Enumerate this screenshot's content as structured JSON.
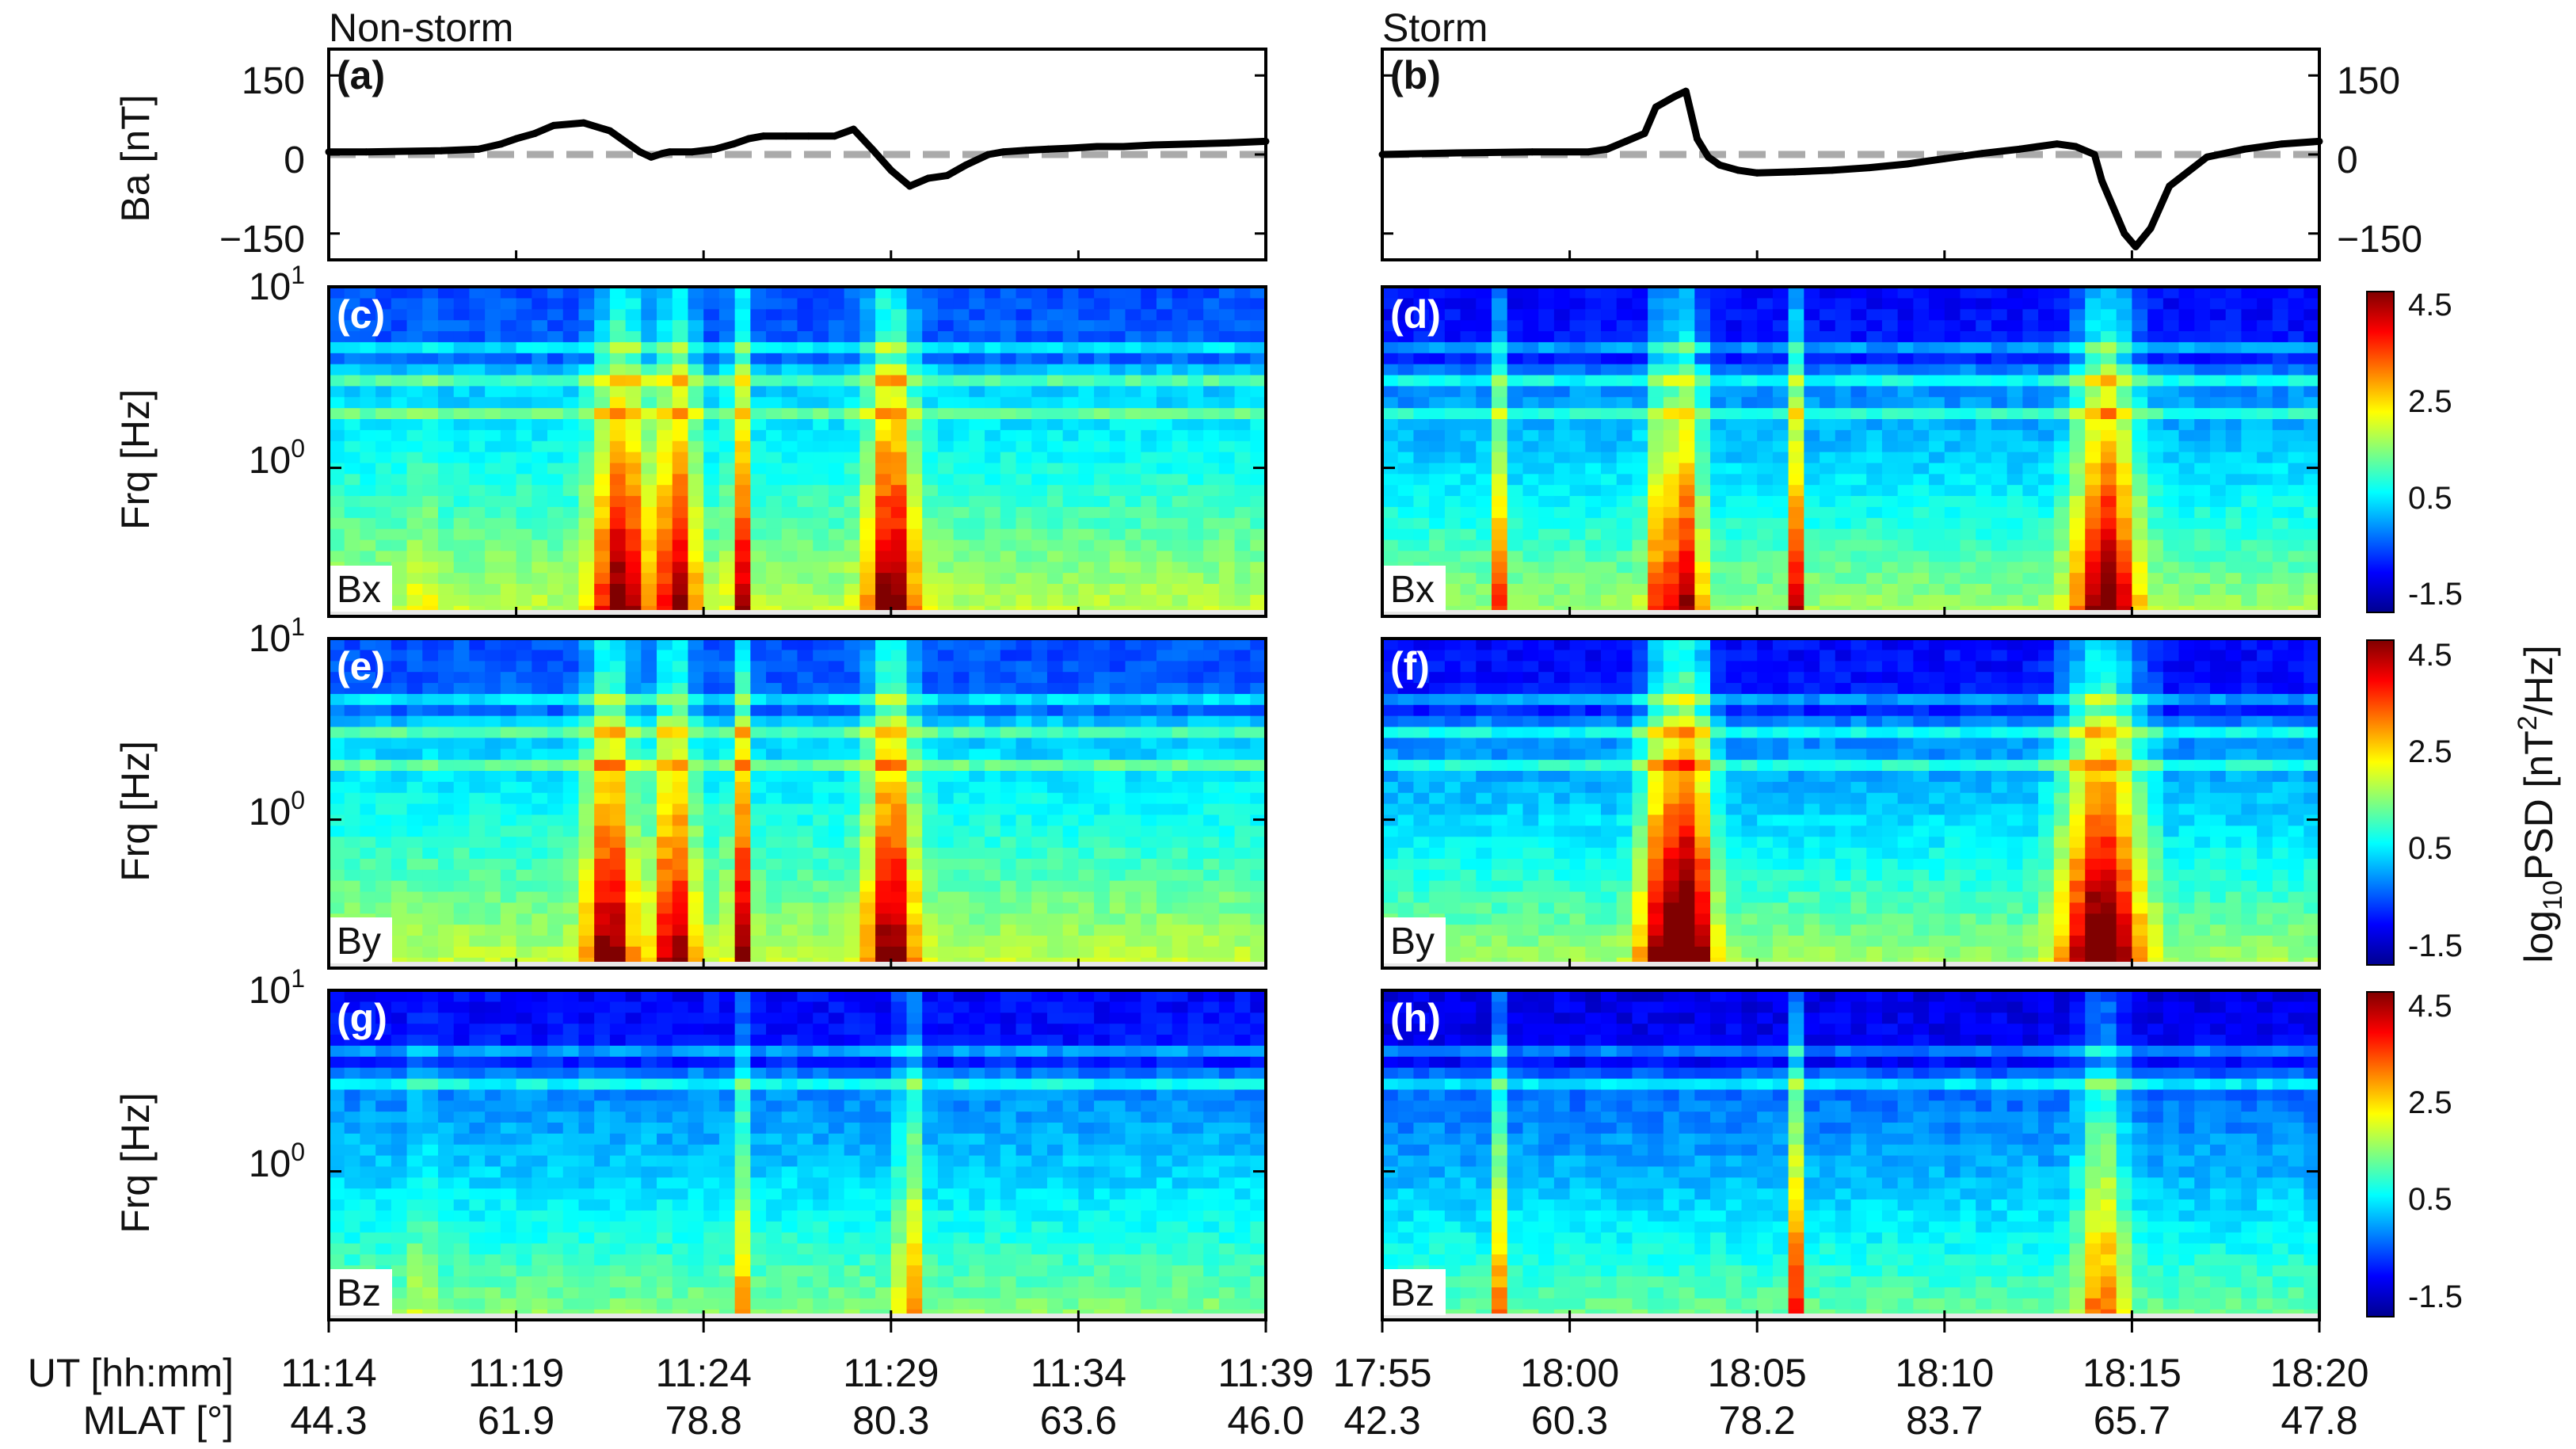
{
  "column_titles": {
    "left": "Non-storm",
    "right": "Storm"
  },
  "panel_labels": [
    "(a)",
    "(b)",
    "(c)",
    "(d)",
    "(e)",
    "(f)",
    "(g)",
    "(h)"
  ],
  "component_labels": [
    "Bx",
    "By",
    "Bz"
  ],
  "y_axis_titles": {
    "ba": "Ba [nT]",
    "frq": "Frq [Hz]"
  },
  "ba_ticks": [
    "150",
    "0",
    "−150"
  ],
  "frq_ticks": {
    "top_base": "10",
    "top_exp": "1",
    "mid_base": "10",
    "mid_exp": "0"
  },
  "colorbar": {
    "title_prefix": "log",
    "title_sub": "10",
    "title_mid": "PSD [nT",
    "title_sup": "2",
    "title_suffix": "/Hz]",
    "ticks": [
      "4.5",
      "2.5",
      "0.5",
      "-1.5"
    ],
    "colormap": "jet",
    "range": [
      -2.0,
      5.0
    ]
  },
  "x_axis": {
    "ut_label": "UT [hh:mm]",
    "mlat_label": "MLAT [°]",
    "left_ut": [
      "11:14",
      "11:19",
      "11:24",
      "11:29",
      "11:34",
      "11:39"
    ],
    "left_mlat": [
      "44.3",
      "61.9",
      "78.8",
      "80.3",
      "63.6",
      "46.0"
    ],
    "right_ut": [
      "17:55",
      "18:00",
      "18:05",
      "18:10",
      "18:15",
      "18:20"
    ],
    "right_mlat": [
      "42.3",
      "60.3",
      "78.2",
      "83.7",
      "65.7",
      "47.8"
    ]
  },
  "chart_data": [
    {
      "type": "line",
      "title": "Non-storm Ba",
      "panel": "(a)",
      "xlabel": "UT [hh:mm]",
      "ylabel": "Ba [nT]",
      "xlim": [
        0,
        25
      ],
      "ylim": [
        -200,
        200
      ],
      "reference_line": 0,
      "x": [
        0,
        1,
        2,
        3,
        4,
        4.6,
        5,
        5.5,
        6,
        6.8,
        7.5,
        7.8,
        8.3,
        8.6,
        8.9,
        9.1,
        9.7,
        10.3,
        10.8,
        11.2,
        11.6,
        12.2,
        12.8,
        13.5,
        14,
        14.5,
        15,
        15.5,
        16,
        16.5,
        17,
        17.6,
        18,
        18.6,
        19.2,
        19.8,
        20.5,
        21.2,
        22,
        23,
        24,
        25
      ],
      "values": [
        5,
        5,
        6,
        7,
        10,
        20,
        30,
        40,
        55,
        60,
        45,
        30,
        5,
        -5,
        2,
        5,
        5,
        10,
        20,
        30,
        35,
        35,
        35,
        35,
        48,
        10,
        -30,
        -60,
        -45,
        -40,
        -20,
        0,
        5,
        8,
        10,
        12,
        15,
        15,
        18,
        20,
        22,
        25
      ]
    },
    {
      "type": "line",
      "title": "Storm Ba",
      "panel": "(b)",
      "xlabel": "UT [hh:mm]",
      "ylabel": "Ba [nT]",
      "xlim": [
        0,
        25
      ],
      "ylim": [
        -200,
        200
      ],
      "reference_line": 0,
      "x": [
        0,
        2,
        4,
        5.5,
        6,
        6.5,
        7,
        7.3,
        7.8,
        8.1,
        8.4,
        8.7,
        9,
        9.5,
        10,
        11,
        12,
        13,
        14,
        15,
        16,
        17,
        17.5,
        18,
        18.5,
        19,
        19.2,
        19.5,
        19.8,
        20.1,
        20.5,
        21,
        22,
        23,
        24,
        25
      ],
      "values": [
        0,
        3,
        5,
        5,
        10,
        25,
        40,
        90,
        110,
        120,
        30,
        -5,
        -20,
        -30,
        -35,
        -33,
        -30,
        -25,
        -18,
        -8,
        2,
        10,
        15,
        20,
        15,
        0,
        -50,
        -100,
        -150,
        -175,
        -140,
        -60,
        -5,
        10,
        20,
        25
      ]
    },
    {
      "type": "heatmap",
      "title": "Non-storm Bx spectrogram",
      "panel": "(c)",
      "component": "Bx",
      "xlabel": "UT [hh:mm]",
      "ylabel": "Frq [Hz]",
      "x_ticks": [
        "11:14",
        "11:19",
        "11:24",
        "11:29",
        "11:34",
        "11:39"
      ],
      "y_ticks": [
        "10^0",
        "10^1"
      ],
      "colorbar_range": [
        -2.0,
        5.0
      ],
      "background_levels": [
        0.0,
        2.0
      ],
      "bursts": [
        {
          "t": 2.5,
          "half_width": 0.15,
          "amp": 2.5
        },
        {
          "t": 7.8,
          "half_width": 0.7,
          "amp": 3.6
        },
        {
          "t": 9.3,
          "half_width": 0.5,
          "amp": 3.3
        },
        {
          "t": 11,
          "half_width": 0.25,
          "amp": 3.0
        },
        {
          "t": 15,
          "half_width": 0.6,
          "amp": 3.8
        }
      ],
      "lines_hz": [
        1.9,
        3.0,
        4.8
      ]
    },
    {
      "type": "heatmap",
      "title": "Storm Bx spectrogram",
      "panel": "(d)",
      "component": "Bx",
      "xlabel": "UT [hh:mm]",
      "ylabel": "Frq [Hz]",
      "x_ticks": [
        "17:55",
        "18:00",
        "18:05",
        "18:10",
        "18:15",
        "18:20"
      ],
      "y_ticks": [
        "10^0",
        "10^1"
      ],
      "colorbar_range": [
        -2.0,
        5.0
      ],
      "background_levels": [
        -0.5,
        1.8
      ],
      "bursts": [
        {
          "t": 3.2,
          "half_width": 0.15,
          "amp": 2.8
        },
        {
          "t": 7.5,
          "half_width": 0.4,
          "amp": 2.8
        },
        {
          "t": 8.2,
          "half_width": 0.35,
          "amp": 3.2
        },
        {
          "t": 11,
          "half_width": 0.15,
          "amp": 3.2
        },
        {
          "t": 19.3,
          "half_width": 0.8,
          "amp": 4.0
        }
      ],
      "lines_hz": [
        1.9,
        3.0,
        4.8
      ]
    },
    {
      "type": "heatmap",
      "title": "Non-storm By spectrogram",
      "panel": "(e)",
      "component": "By",
      "xlabel": "UT [hh:mm]",
      "ylabel": "Frq [Hz]",
      "x_ticks": [
        "11:14",
        "11:19",
        "11:24",
        "11:29",
        "11:34",
        "11:39"
      ],
      "y_ticks": [
        "10^0",
        "10^1"
      ],
      "colorbar_range": [
        -2.0,
        5.0
      ],
      "background_levels": [
        0.0,
        2.0
      ],
      "bursts": [
        {
          "t": 7.5,
          "half_width": 0.6,
          "amp": 3.6
        },
        {
          "t": 9.2,
          "half_width": 0.5,
          "amp": 3.4
        },
        {
          "t": 11,
          "half_width": 0.25,
          "amp": 3.4
        },
        {
          "t": 15,
          "half_width": 0.6,
          "amp": 3.8
        }
      ],
      "lines_hz": [
        1.9,
        3.0,
        4.8
      ]
    },
    {
      "type": "heatmap",
      "title": "Storm By spectrogram",
      "panel": "(f)",
      "component": "By",
      "xlabel": "UT [hh:mm]",
      "ylabel": "Frq [Hz]",
      "x_ticks": [
        "17:55",
        "18:00",
        "18:05",
        "18:10",
        "18:15",
        "18:20"
      ],
      "y_ticks": [
        "10^0",
        "10^1"
      ],
      "colorbar_range": [
        -2.0,
        5.0
      ],
      "background_levels": [
        -0.5,
        1.8
      ],
      "bursts": [
        {
          "t": 7.5,
          "half_width": 0.6,
          "amp": 3.8
        },
        {
          "t": 8.3,
          "half_width": 0.5,
          "amp": 4.2
        },
        {
          "t": 19.2,
          "half_width": 1.0,
          "amp": 4.5
        }
      ],
      "lines_hz": [
        1.9,
        3.0,
        4.8
      ]
    },
    {
      "type": "heatmap",
      "title": "Non-storm Bz spectrogram",
      "panel": "(g)",
      "component": "Bz",
      "xlabel": "UT [hh:mm]",
      "ylabel": "Frq [Hz]",
      "x_ticks": [
        "11:14",
        "11:19",
        "11:24",
        "11:29",
        "11:34",
        "11:39"
      ],
      "y_ticks": [
        "10^0",
        "10^1"
      ],
      "colorbar_range": [
        -2.0,
        5.0
      ],
      "background_levels": [
        -0.5,
        1.6
      ],
      "bursts": [
        {
          "t": 2.5,
          "half_width": 0.15,
          "amp": 3.0
        },
        {
          "t": 11,
          "half_width": 0.15,
          "amp": 1.8
        },
        {
          "t": 15.5,
          "half_width": 0.3,
          "amp": 2.2
        }
      ],
      "lines_hz": [
        2.9,
        4.8
      ]
    },
    {
      "type": "heatmap",
      "title": "Storm Bz spectrogram",
      "panel": "(h)",
      "component": "Bz",
      "xlabel": "UT [hh:mm]",
      "ylabel": "Frq [Hz]",
      "x_ticks": [
        "17:55",
        "18:00",
        "18:05",
        "18:10",
        "18:15",
        "18:20"
      ],
      "y_ticks": [
        "10^0",
        "10^1"
      ],
      "colorbar_range": [
        -2.0,
        5.0
      ],
      "background_levels": [
        -0.7,
        1.4
      ],
      "bursts": [
        {
          "t": 3.2,
          "half_width": 0.12,
          "amp": 3.2
        },
        {
          "t": 11,
          "half_width": 0.12,
          "amp": 3.2
        },
        {
          "t": 19.2,
          "half_width": 0.6,
          "amp": 2.4
        }
      ],
      "lines_hz": [
        2.9,
        4.8
      ]
    }
  ]
}
